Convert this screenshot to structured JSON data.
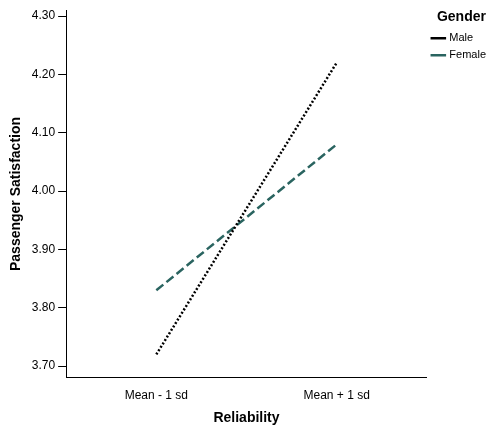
{
  "chart_data": {
    "type": "line",
    "x_label": "Reliability",
    "y_label": "Passenger Satisfaction",
    "legend_title": "Gender",
    "categories": [
      "Mean - 1 sd",
      "Mean + 1 sd"
    ],
    "series": [
      {
        "name": "Male",
        "color": "#000000",
        "line_style": "dotted",
        "values": [
          3.72,
          4.22
        ]
      },
      {
        "name": "Female",
        "color": "#2a6460",
        "line_style": "dashed",
        "values": [
          3.83,
          4.08
        ]
      }
    ],
    "ylim": [
      3.68,
      4.31
    ],
    "yticks": [
      {
        "value": 3.7,
        "label": "3.70"
      },
      {
        "value": 3.8,
        "label": "3.80"
      },
      {
        "value": 3.9,
        "label": "3.90"
      },
      {
        "value": 4.0,
        "label": "4.00"
      },
      {
        "value": 4.1,
        "label": "4.10"
      },
      {
        "value": 4.2,
        "label": "4.20"
      },
      {
        "value": 4.3,
        "label": "4.30"
      }
    ],
    "grid": false,
    "legend": "top-right"
  }
}
